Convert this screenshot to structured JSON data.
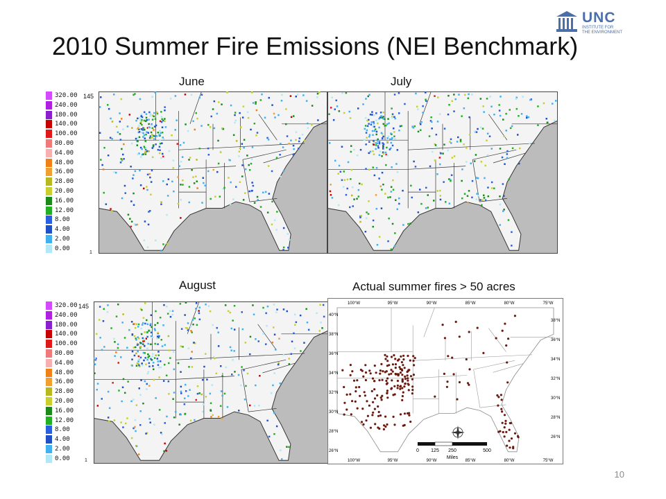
{
  "title": "2010 Summer Fire Emissions (NEI Benchmark)",
  "logo": {
    "name": "UNC",
    "subtitle_line1": "INSTITUTE FOR",
    "subtitle_line2": "THE ENVIRONMENT"
  },
  "captions": {
    "june": "June",
    "july": "July",
    "august": "August",
    "actual": "Actual summer fires > 50 acres"
  },
  "legend": {
    "grid_label": "145",
    "min_marker": "1",
    "entries": [
      {
        "label": "320.00",
        "color": "#d44bff"
      },
      {
        "label": "240.00",
        "color": "#b020e0"
      },
      {
        "label": "180.00",
        "color": "#8a1fd0"
      },
      {
        "label": "140.00",
        "color": "#c80000"
      },
      {
        "label": "100.00",
        "color": "#e01818"
      },
      {
        "label": "80.00",
        "color": "#f07a7a"
      },
      {
        "label": "64.00",
        "color": "#f6b0b0"
      },
      {
        "label": "48.00",
        "color": "#f28018"
      },
      {
        "label": "36.00",
        "color": "#f0a030"
      },
      {
        "label": "28.00",
        "color": "#b8b820"
      },
      {
        "label": "20.00",
        "color": "#c8d030"
      },
      {
        "label": "16.00",
        "color": "#1a8a1a"
      },
      {
        "label": "12.00",
        "color": "#22b022"
      },
      {
        "label": "8.00",
        "color": "#2a60e0"
      },
      {
        "label": "4.00",
        "color": "#2050c8"
      },
      {
        "label": "2.00",
        "color": "#40b0f0"
      },
      {
        "label": "0.00",
        "color": "#b0e8f8"
      }
    ]
  },
  "actual_map": {
    "lon_labels": [
      "100°W",
      "95°W",
      "90°W",
      "85°W",
      "80°W",
      "75°W"
    ],
    "lat_labels_left": [
      "40°N",
      "38°N",
      "36°N",
      "34°N",
      "32°N",
      "30°N",
      "28°N",
      "26°N"
    ],
    "lat_labels_right": [
      "38°N",
      "36°N",
      "34°N",
      "32°N",
      "30°N",
      "28°N",
      "26°N"
    ],
    "scale_labels": [
      "0",
      "125",
      "250",
      "500"
    ],
    "scale_unit": "Miles",
    "fire_color": "#6b1a10"
  },
  "page_number": "10"
}
